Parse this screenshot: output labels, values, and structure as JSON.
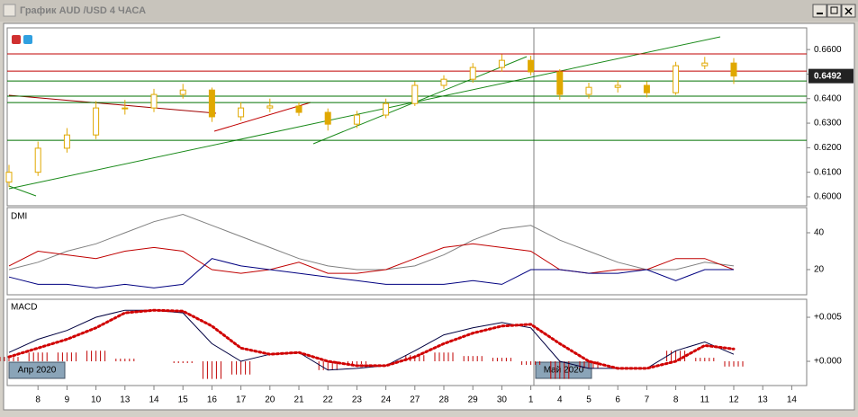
{
  "window": {
    "title": "График AUD /USD  4 ЧАСА"
  },
  "chart_data": [
    {
      "type": "candlestick",
      "open": [
        0.606,
        0.61,
        0.6198,
        0.6252,
        0.6362,
        0.6362,
        0.6417,
        0.6435,
        0.6326,
        0.6362,
        0.637,
        0.6344,
        0.6296,
        0.6333,
        0.638,
        0.6454,
        0.6479,
        0.6527,
        0.6556,
        0.6509,
        0.6417,
        0.6446,
        0.6454,
        0.6424,
        0.6534,
        0.6545,
        null,
        null
      ],
      "high": [
        0.613,
        0.6225,
        0.628,
        0.639,
        0.6395,
        0.644,
        0.646,
        0.6445,
        0.6385,
        0.64,
        0.6385,
        0.636,
        0.635,
        0.64,
        0.647,
        0.6495,
        0.6545,
        0.658,
        0.6575,
        0.652,
        0.6465,
        0.6475,
        0.647,
        0.655,
        0.657,
        0.6565,
        null,
        null
      ],
      "low": [
        0.604,
        0.6085,
        0.618,
        0.6235,
        0.6335,
        0.6345,
        0.64,
        0.6305,
        0.631,
        0.6345,
        0.633,
        0.627,
        0.628,
        0.632,
        0.637,
        0.644,
        0.6465,
        0.651,
        0.6495,
        0.6395,
        0.64,
        0.6425,
        0.6405,
        0.6415,
        0.652,
        0.646,
        null,
        null
      ],
      "close": [
        0.61,
        0.6198,
        0.6252,
        0.6362,
        0.6362,
        0.6417,
        0.6435,
        0.6326,
        0.6362,
        0.637,
        0.6344,
        0.6296,
        0.6333,
        0.638,
        0.6454,
        0.6479,
        0.6527,
        0.6556,
        0.6509,
        0.6417,
        0.6446,
        0.6454,
        0.6424,
        0.6534,
        0.6545,
        0.6492,
        null,
        null
      ],
      "color": "#e0a800",
      "ylim": [
        0.5967,
        0.6681
      ],
      "yticks": [
        {
          "value": 0.6,
          "label": "0.6000"
        },
        {
          "value": 0.61,
          "label": "0.6100"
        },
        {
          "value": 0.62,
          "label": "0.6200"
        },
        {
          "value": 0.63,
          "label": "0.6300"
        },
        {
          "value": 0.64,
          "label": "0.6400"
        },
        {
          "value": 0.65,
          "label": "0.6500"
        },
        {
          "value": 0.66,
          "label": "0.6600"
        }
      ],
      "hlines": [
        {
          "value": 0.6582,
          "color": "#c00000"
        },
        {
          "value": 0.6512,
          "color": "#c00000"
        },
        {
          "value": 0.6472,
          "color": "#007000"
        },
        {
          "value": 0.641,
          "color": "#007000"
        },
        {
          "value": 0.6384,
          "color": "#007000"
        },
        {
          "value": 0.623,
          "color": "#007000"
        }
      ],
      "last_price": {
        "value": 0.6492,
        "label": "0.6492"
      }
    },
    {
      "type": "line",
      "title": "DMI",
      "series": [
        {
          "color": "#808080",
          "values": [
            20,
            24,
            30,
            34,
            40,
            46,
            50,
            44,
            38,
            32,
            26,
            22,
            20,
            20,
            22,
            28,
            36,
            42,
            44,
            36,
            30,
            24,
            20,
            20,
            24,
            22,
            null,
            null
          ]
        },
        {
          "color": "#c00000",
          "values": [
            22,
            30,
            28,
            26,
            30,
            32,
            30,
            20,
            18,
            20,
            24,
            18,
            18,
            20,
            26,
            32,
            34,
            32,
            30,
            20,
            18,
            20,
            20,
            26,
            26,
            20,
            null,
            null
          ]
        },
        {
          "color": "#000080",
          "values": [
            16,
            12,
            12,
            10,
            12,
            10,
            12,
            26,
            22,
            20,
            18,
            16,
            14,
            12,
            12,
            12,
            14,
            12,
            20,
            20,
            18,
            18,
            20,
            14,
            20,
            20,
            null,
            null
          ]
        }
      ],
      "ylim": [
        6.8,
        52.7
      ],
      "yticks": [
        20,
        40
      ]
    },
    {
      "type": "macd",
      "title": "MACD",
      "categories": [
        null,
        "8",
        "9",
        "10",
        "13",
        "14",
        "15",
        "16",
        "17",
        "20",
        "21",
        "22",
        "23",
        "24",
        "27",
        "28",
        "29",
        "30",
        "1",
        "4",
        "5",
        "6",
        "7",
        "8",
        "11",
        "12",
        "13",
        "14"
      ],
      "series": [
        {
          "style": "histogram",
          "color": "#c00000",
          "values": [
            0.0005,
            0.001,
            0.001,
            0.0012,
            0.0003,
            0.0,
            -0.0002,
            -0.002,
            -0.0015,
            0.0,
            0.0,
            -0.001,
            -0.0003,
            0.0,
            0.0007,
            0.001,
            0.0006,
            0.0004,
            -0.0004,
            -0.002,
            -0.0008,
            0.0,
            0.0,
            0.0012,
            0.0004,
            -0.0006,
            null,
            null
          ]
        },
        {
          "style": "line",
          "color": "#000040",
          "values": [
            0.001,
            0.0025,
            0.0035,
            0.005,
            0.0058,
            0.0058,
            0.0055,
            0.002,
            0.0,
            0.0008,
            0.001,
            -0.001,
            -0.0008,
            -0.0005,
            0.0012,
            0.003,
            0.0038,
            0.0044,
            0.0038,
            0.0,
            -0.0008,
            -0.0008,
            -0.0008,
            0.0012,
            0.0022,
            0.0008,
            null,
            null
          ]
        },
        {
          "style": "dotted",
          "color": "#d00000",
          "values": [
            0.0005,
            0.0015,
            0.0025,
            0.0038,
            0.0055,
            0.0058,
            0.0057,
            0.004,
            0.0015,
            0.0008,
            0.001,
            0.0,
            -0.0005,
            -0.0005,
            0.0005,
            0.002,
            0.0032,
            0.004,
            0.0042,
            0.002,
            0.0,
            -0.0008,
            -0.0008,
            0.0,
            0.0018,
            0.0014,
            null,
            null
          ]
        }
      ],
      "ylim": [
        -0.00265,
        0.00684
      ],
      "yticks": [
        {
          "value": 0.005,
          "label": "+0.005"
        },
        {
          "value": 0,
          "label": "+0.000"
        }
      ],
      "annotations": [
        "Апр 2020",
        "Май 2020"
      ]
    }
  ]
}
